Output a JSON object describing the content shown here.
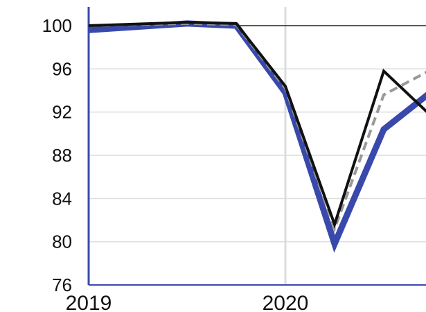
{
  "chart_data": {
    "type": "line",
    "title": "",
    "xlabel": "",
    "ylabel": "",
    "ylim": [
      76,
      100
    ],
    "xlim": [
      2019.0,
      2020.75
    ],
    "yticks": [
      76,
      80,
      84,
      88,
      92,
      96,
      100
    ],
    "xticks": [
      2019,
      2020
    ],
    "ytick_labels": [
      "76",
      "80",
      "84",
      "88",
      "92",
      "96",
      "100"
    ],
    "xtick_labels": [
      "2019",
      "2020"
    ],
    "grid": true,
    "reference_line": 100,
    "x": [
      2019.0,
      2019.5,
      2019.75,
      2020.0,
      2020.25,
      2020.5,
      2020.75
    ],
    "series": [
      {
        "color": "#3949ab",
        "style": "thick-solid",
        "values": [
          99.6,
          100.2,
          100.0,
          93.8,
          79.8,
          90.4,
          94.0
        ]
      },
      {
        "color": "#999999",
        "style": "dashed",
        "values": [
          100.0,
          100.2,
          100.1,
          94.2,
          81.2,
          93.6,
          96.0
        ]
      },
      {
        "color": "#111111",
        "style": "solid",
        "values": [
          100.0,
          100.3,
          100.2,
          94.4,
          81.6,
          95.8,
          91.5
        ]
      }
    ],
    "legend": "none"
  }
}
